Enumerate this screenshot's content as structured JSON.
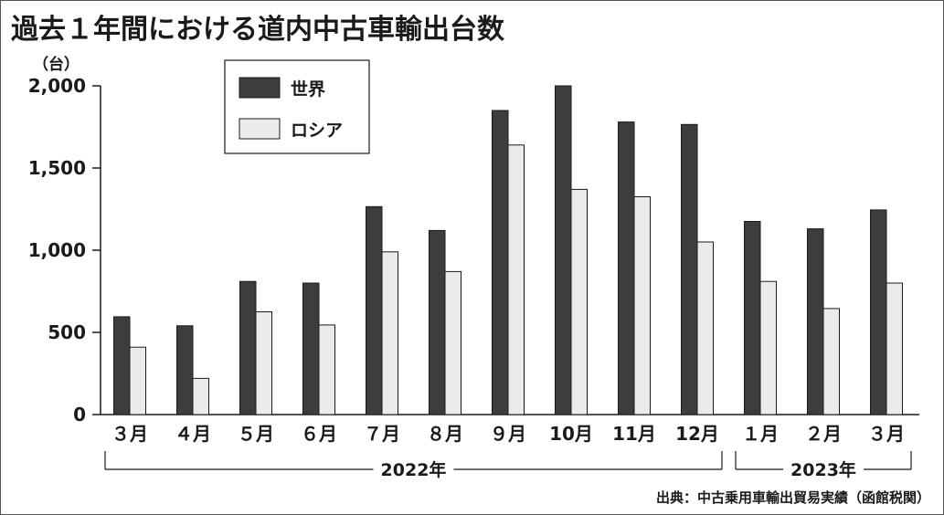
{
  "chart_data": {
    "type": "bar",
    "title": "過去１年間における道内中古車輸出台数",
    "unit_label": "（台）",
    "categories": [
      "３月",
      "４月",
      "５月",
      "６月",
      "７月",
      "８月",
      "９月",
      "10月",
      "11月",
      "12月",
      "１月",
      "２月",
      "３月"
    ],
    "year_groups": [
      {
        "label": "2022年",
        "from": 0,
        "to": 9
      },
      {
        "label": "2023年",
        "from": 10,
        "to": 12
      }
    ],
    "series": [
      {
        "name": "世界",
        "color": "#3d3d3f",
        "values": [
          595,
          540,
          810,
          800,
          1265,
          1120,
          1850,
          2000,
          1780,
          1765,
          1175,
          1130,
          1245
        ]
      },
      {
        "name": "ロシア",
        "color": "#ebebeb",
        "values": [
          410,
          220,
          625,
          545,
          990,
          870,
          1640,
          1370,
          1325,
          1050,
          810,
          645,
          800
        ]
      }
    ],
    "ylim": [
      0,
      2000
    ],
    "yticks": [
      0,
      500,
      1000,
      1500,
      2000
    ],
    "ytick_labels": [
      "0",
      "500",
      "1,000",
      "1,500",
      "2,000"
    ],
    "legend_position": "top-left",
    "grid": false,
    "source": "出典：中古乗用車輸出貿易実績（函館税関）"
  }
}
